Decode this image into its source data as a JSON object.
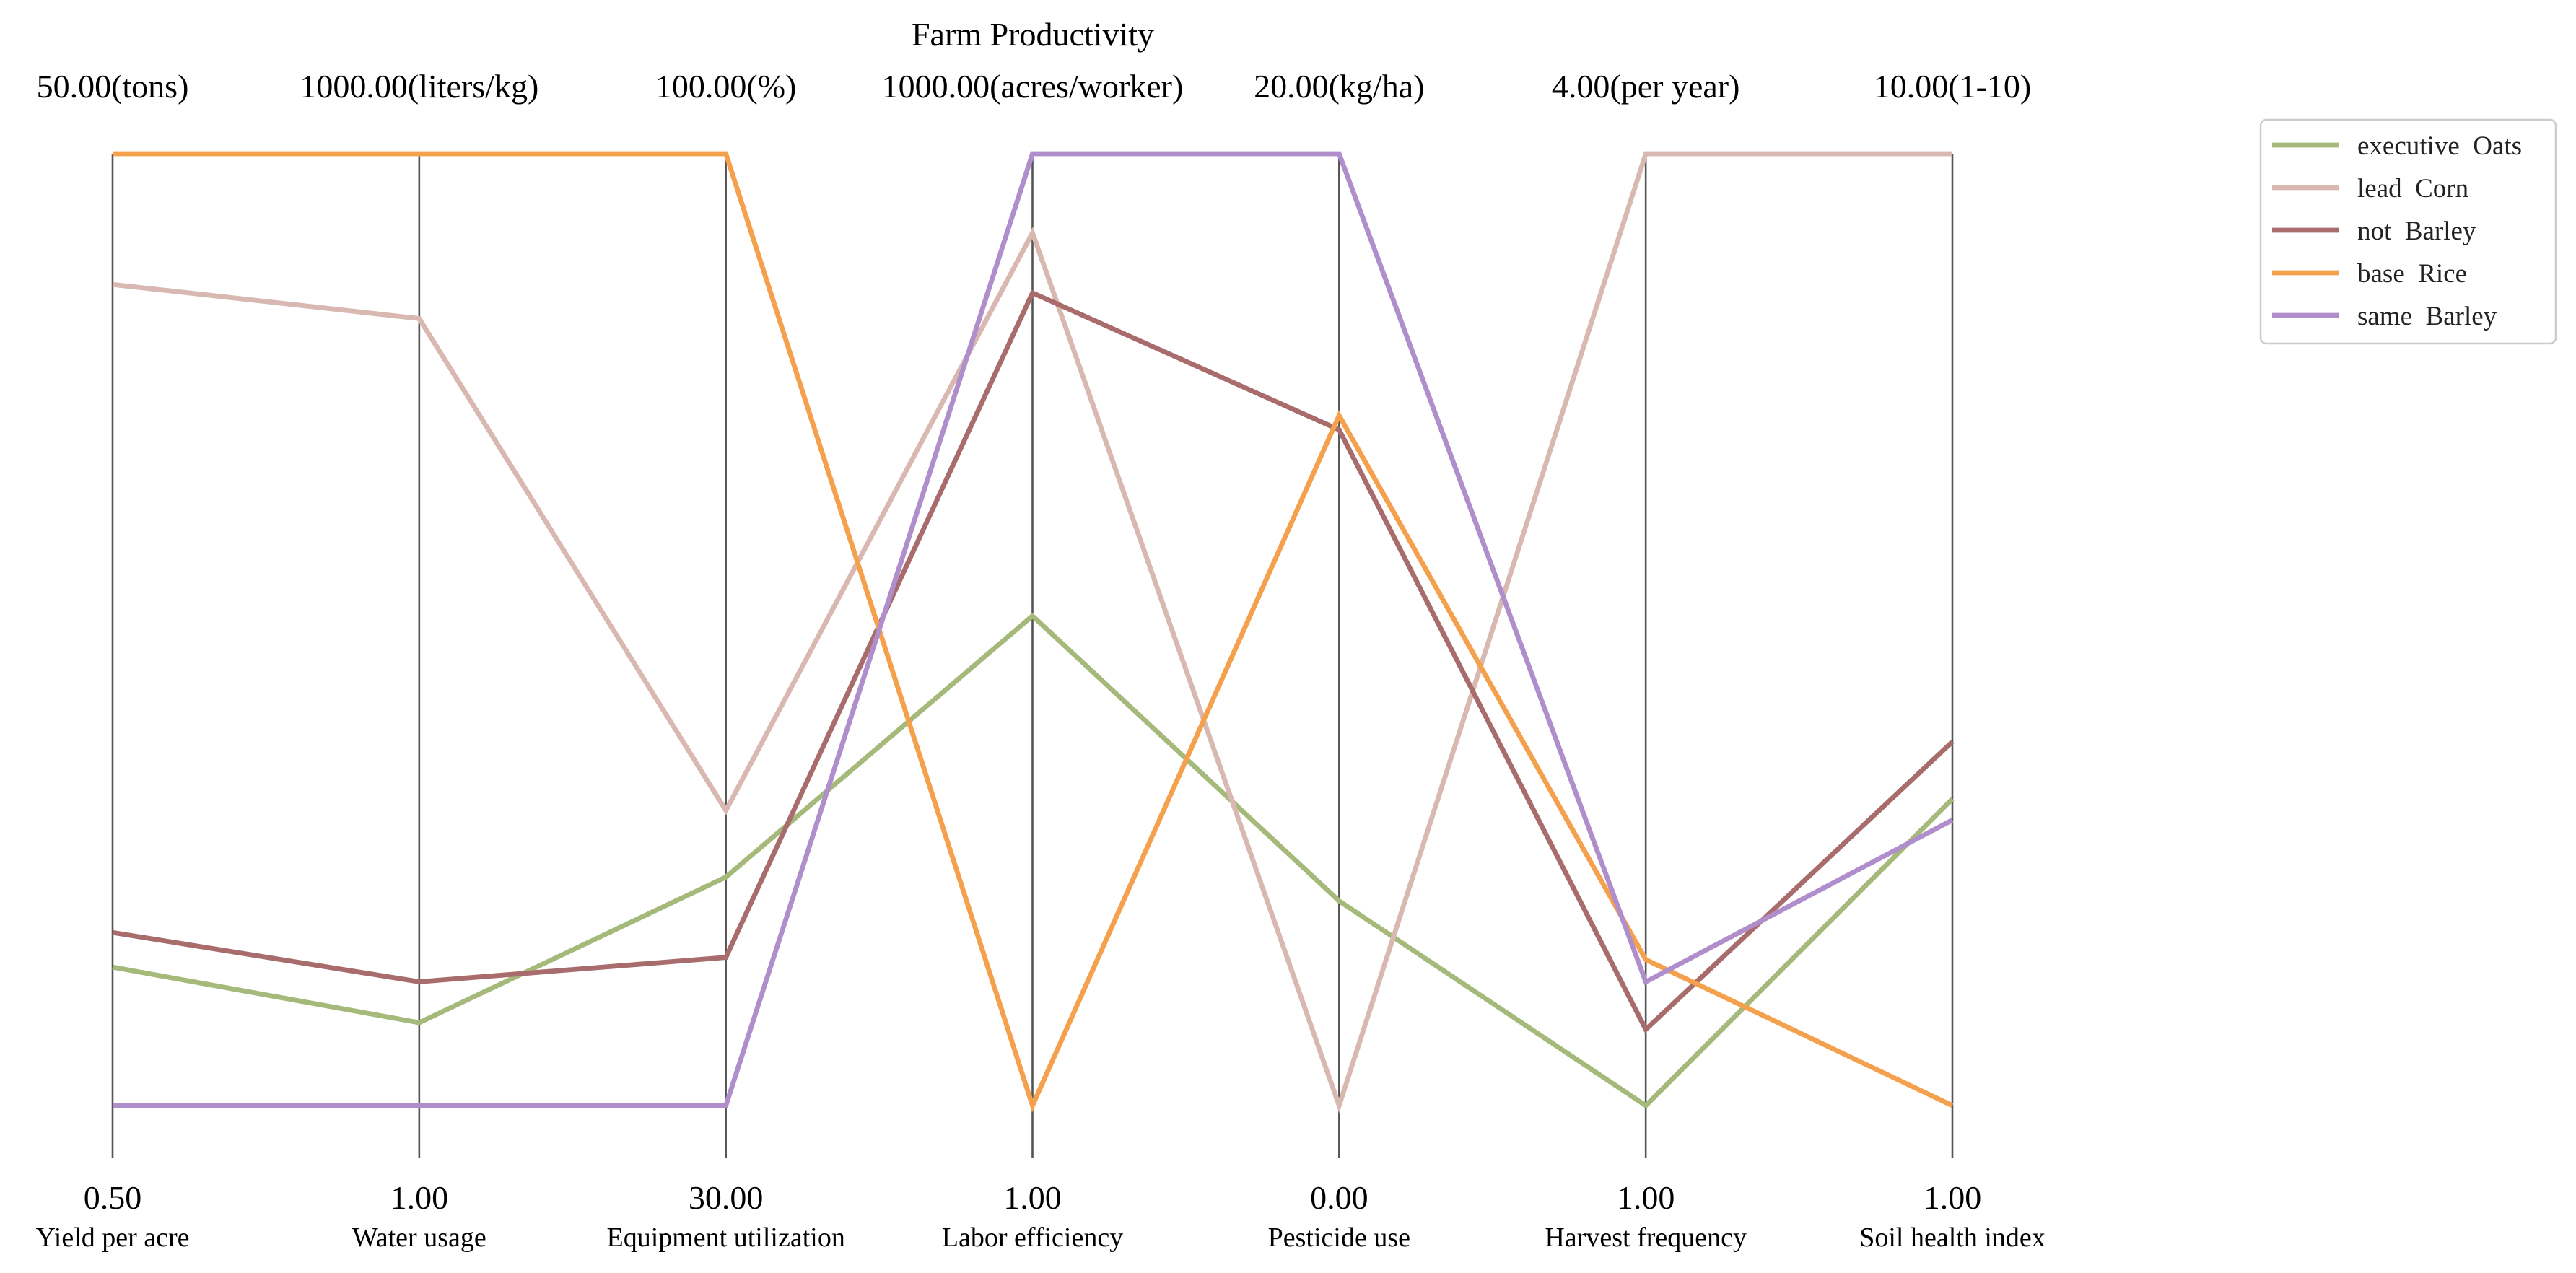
{
  "chart_data": {
    "type": "parallel-coordinates",
    "title": "Farm Productivity",
    "axes": [
      {
        "label": "Yield per acre",
        "min": 0.5,
        "max": 50.0,
        "min_label": "0.50",
        "max_label": "50.00(tons)"
      },
      {
        "label": "Water usage",
        "min": 1.0,
        "max": 1000.0,
        "min_label": "1.00",
        "max_label": "1000.00(liters/kg)"
      },
      {
        "label": "Equipment utilization",
        "min": 30.0,
        "max": 100.0,
        "min_label": "30.00",
        "max_label": "100.00(%)"
      },
      {
        "label": "Labor efficiency",
        "min": 1.0,
        "max": 1000.0,
        "min_label": "1.00",
        "max_label": "1000.00(acres/worker)"
      },
      {
        "label": "Pesticide use",
        "min": 0.0,
        "max": 20.0,
        "min_label": "0.00",
        "max_label": "20.00(kg/ha)"
      },
      {
        "label": "Harvest frequency",
        "min": 1.0,
        "max": 4.0,
        "min_label": "1.00",
        "max_label": "4.00(per year)"
      },
      {
        "label": "Soil health index",
        "min": 1.0,
        "max": 10.0,
        "min_label": "1.00",
        "max_label": "10.00(1-10)"
      }
    ],
    "series": [
      {
        "name": "executive  Oats",
        "color": "#a5b97a",
        "values": [
          7.7,
          88,
          46.8,
          515,
          4.3,
          1.0,
          3.9
        ]
      },
      {
        "name": "lead  Corn",
        "color": "#d8b8b0",
        "values": [
          43.2,
          827,
          51.7,
          917,
          0.0,
          4.0,
          10.0
        ]
      },
      {
        "name": "not  Barley",
        "color": "#a86c6c",
        "values": [
          9.5,
          131,
          40.9,
          854,
          14.2,
          1.24,
          4.44
        ]
      },
      {
        "name": "base  Rice",
        "color": "#f4a04d",
        "values": [
          50.0,
          1000,
          100.0,
          1.0,
          14.5,
          1.46,
          1.0
        ]
      },
      {
        "name": "same  Barley",
        "color": "#b08ecb",
        "values": [
          0.5,
          1.0,
          30.0,
          1000,
          20.0,
          1.39,
          3.7
        ]
      }
    ],
    "legend_position": "upper right, outside plot",
    "grid": false
  }
}
